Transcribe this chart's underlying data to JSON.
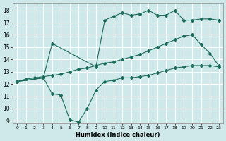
{
  "xlabel": "Humidex (Indice chaleur)",
  "bg_color": "#cfe9ea",
  "grid_color": "#ffffff",
  "line_color": "#1a6b5a",
  "xlim": [
    -0.5,
    23.5
  ],
  "ylim": [
    8.8,
    18.6
  ],
  "xticks": [
    0,
    1,
    2,
    3,
    4,
    5,
    6,
    7,
    8,
    9,
    10,
    11,
    12,
    13,
    14,
    15,
    16,
    17,
    18,
    19,
    20,
    21,
    22,
    23
  ],
  "yticks": [
    9,
    10,
    11,
    12,
    13,
    14,
    15,
    16,
    17,
    18
  ],
  "upper_x": [
    0,
    3,
    4,
    9,
    10,
    11,
    12,
    13,
    14,
    15,
    16,
    17,
    18,
    19,
    20,
    21,
    22,
    23
  ],
  "upper_y": [
    12.2,
    12.5,
    15.3,
    13.4,
    17.2,
    17.5,
    17.8,
    17.6,
    17.7,
    18.0,
    17.6,
    17.6,
    18.0,
    17.2,
    17.2,
    17.3,
    17.3,
    17.2
  ],
  "mid_x": [
    0,
    1,
    2,
    3,
    4,
    5,
    6,
    7,
    8,
    9,
    10,
    11,
    12,
    13,
    14,
    15,
    16,
    17,
    18,
    19,
    20,
    21,
    22,
    23
  ],
  "mid_y": [
    12.2,
    12.4,
    12.5,
    12.6,
    12.7,
    12.8,
    13.0,
    13.2,
    13.3,
    13.5,
    13.7,
    13.8,
    14.0,
    14.2,
    14.4,
    14.7,
    15.0,
    15.3,
    15.6,
    15.9,
    16.0,
    15.2,
    14.5,
    13.5
  ],
  "lower_x": [
    0,
    3,
    4,
    5,
    6,
    7,
    8,
    9,
    10,
    11,
    12,
    13,
    14,
    15,
    16,
    17,
    18,
    19,
    20,
    21,
    22,
    23
  ],
  "lower_y": [
    12.2,
    12.5,
    11.2,
    11.1,
    9.1,
    8.9,
    10.0,
    11.5,
    12.2,
    12.3,
    12.5,
    12.5,
    12.6,
    12.7,
    12.9,
    13.1,
    13.3,
    13.4,
    13.5,
    13.5,
    13.5,
    13.4
  ]
}
